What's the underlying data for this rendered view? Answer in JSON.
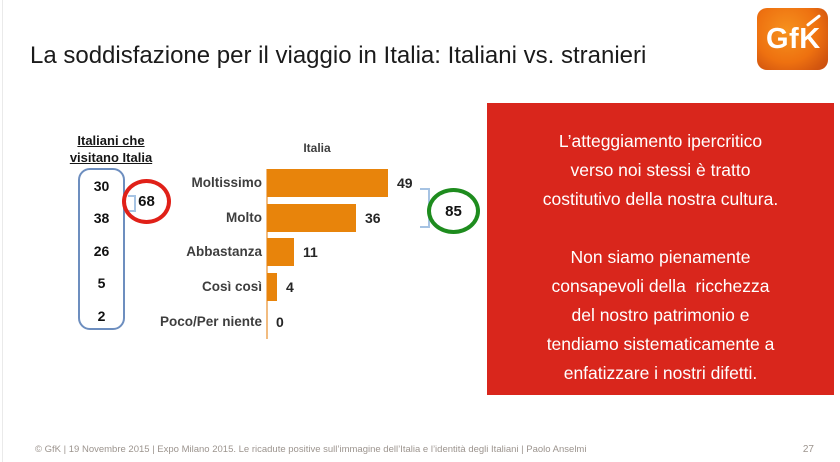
{
  "slide": {
    "title": "La soddisfazione per il viaggio in Italia: Italiani vs. stranieri",
    "logo_text": "GfK",
    "footer": "© GfK | 19 Novembre 2015 | Expo Milano 2015. Le ricadute positive sull’immagine dell’Italia e l’identità degli Italiani | Paolo Anselmi",
    "page_number": "27"
  },
  "left_panel": {
    "heading_line1": "Italiani che",
    "heading_line2": "visitano Italia",
    "sum_badge": "68"
  },
  "chart": {
    "title": "Italia",
    "sum_badge": "85"
  },
  "callout": {
    "lines": [
      "L’atteggiamento ipercritico",
      "verso noi stessi è tratto",
      "costitutivo della nostra cultura.",
      "",
      "Non siamo pienamente",
      "consapevoli della  ricchezza",
      "del nostro patrimonio e",
      "tendiamo sistematicamente a",
      "enfatizzare i nostri difetti."
    ]
  },
  "colors": {
    "bar_orange": "#E8840B",
    "callout_red": "#D9261C",
    "red_circle": "#E02018",
    "green_circle": "#1E8C1E",
    "blue_box_border": "#6D8EBF",
    "bracket_blue": "#A6C3E3",
    "logo_orange": "#EE7110",
    "footer_gray": "#9C948E"
  },
  "chart_data": {
    "type": "bar",
    "orientation": "horizontal",
    "title": "Italia",
    "categories": [
      "Moltissimo",
      "Molto",
      "Abbastanza",
      "Così così",
      "Poco/Per niente"
    ],
    "series": [
      {
        "name": "Italiani che visitano Italia",
        "values": [
          30,
          38,
          26,
          5,
          2
        ]
      },
      {
        "name": "Italia",
        "values": [
          49,
          36,
          11,
          4,
          0
        ]
      }
    ],
    "annotations": [
      {
        "label": "68",
        "series": "Italiani che visitano Italia",
        "style": "red-circle"
      },
      {
        "label": "85",
        "series": "Italia",
        "style": "green-circle"
      }
    ],
    "legend": "none",
    "grid": false,
    "bar_color": "#E8840B"
  }
}
